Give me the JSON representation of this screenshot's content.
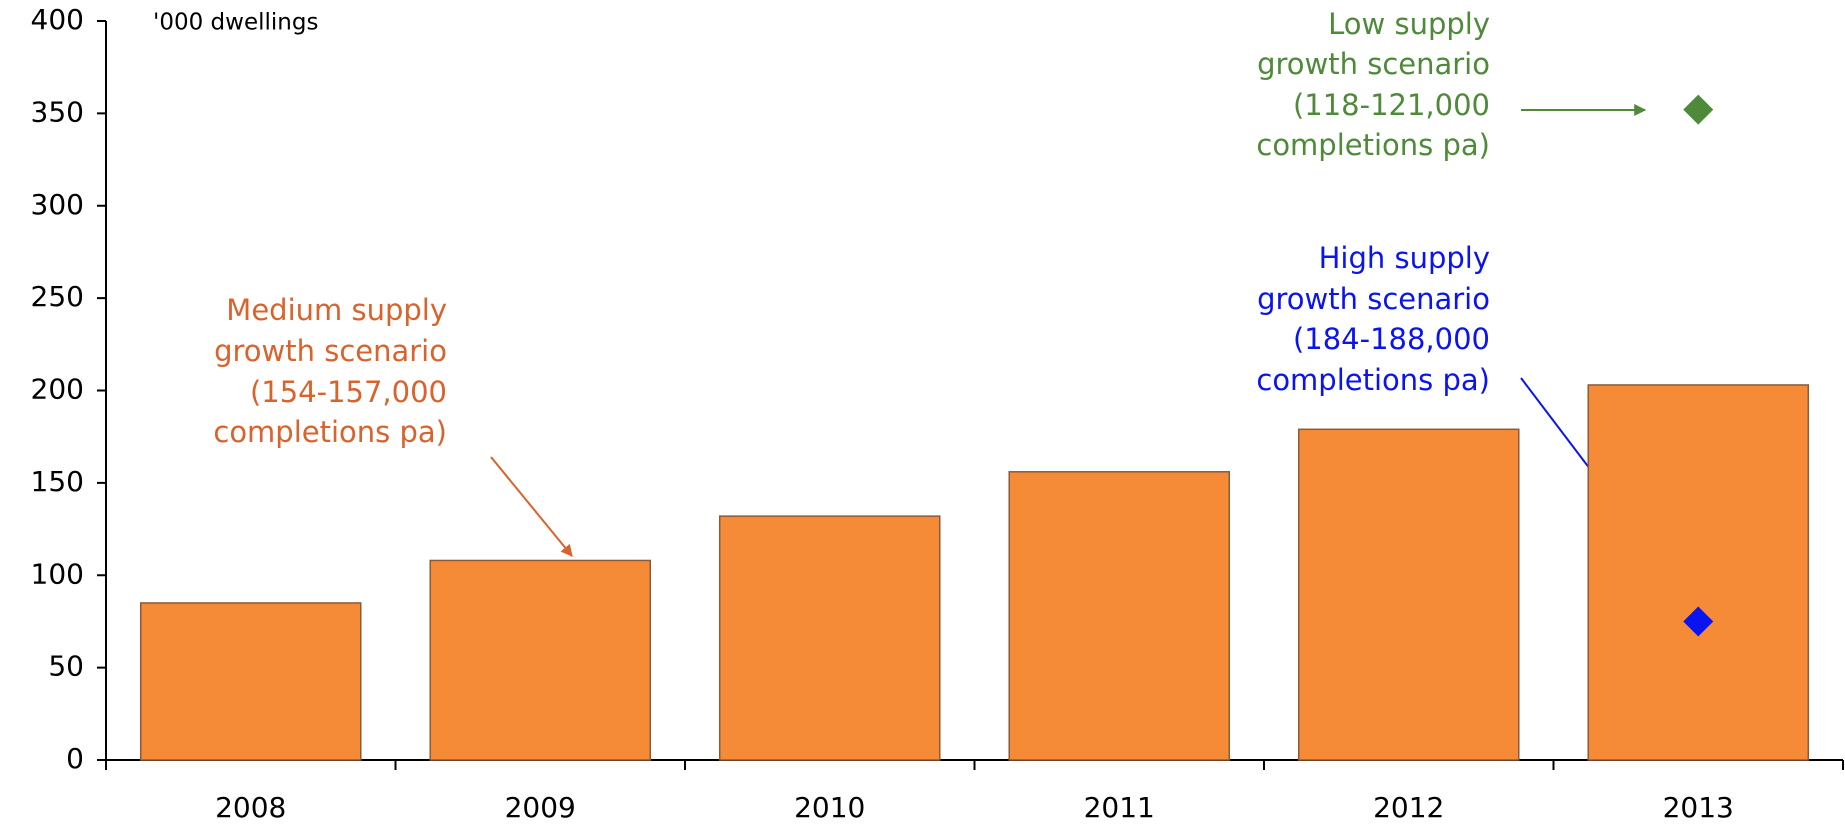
{
  "chart_data": {
    "type": "bar",
    "unit_label": "'000 dwellings",
    "categories": [
      "2008",
      "2009",
      "2010",
      "2011",
      "2012",
      "2013"
    ],
    "values": [
      85,
      108,
      132,
      156,
      179,
      203
    ],
    "color": "#f68b37",
    "markers": [
      {
        "color": "#4e8a3a",
        "values": [
          null,
          null,
          null,
          null,
          null,
          352
        ]
      },
      {
        "color": "#0a14f0",
        "values": [
          null,
          null,
          null,
          null,
          null,
          75
        ]
      }
    ],
    "ylim": [
      0,
      400
    ],
    "yticks": [
      0,
      50,
      100,
      150,
      200,
      250,
      300,
      350,
      400
    ],
    "annotations": [
      {
        "lines": [
          "Medium supply",
          "growth scenario",
          "(154-157,000",
          "completions pa)"
        ],
        "color": "#d9632c"
      },
      {
        "lines": [
          "Low supply",
          "growth scenario",
          "(118-121,000",
          "completions pa)"
        ],
        "color": "#4e8a3a"
      },
      {
        "lines": [
          "High supply",
          "growth scenario",
          "(184-188,000",
          "completions pa)"
        ],
        "color": "#0a14f0"
      }
    ]
  }
}
